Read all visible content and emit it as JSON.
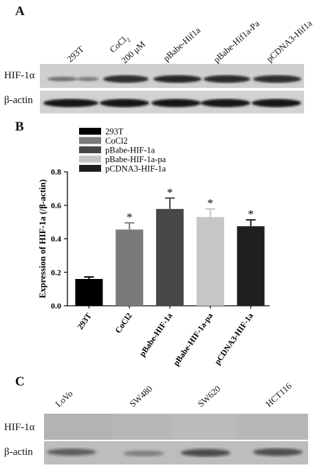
{
  "panel_a": {
    "letter": "A",
    "lanes": [
      {
        "label": "293T"
      },
      {
        "label": "CoCl",
        "sub": "2",
        "label2": "200 μM"
      },
      {
        "label": "pBabe-Hif1a"
      },
      {
        "label": "pBabe-Hif1a-Pa"
      },
      {
        "label": "pCDNA3-Hif1a"
      }
    ],
    "row1_label": "HIF-1α",
    "row2_label": "β-actin"
  },
  "panel_b": {
    "letter": "B"
  },
  "panel_c": {
    "letter": "C",
    "lanes": [
      "LoVo",
      "SW480",
      "SW620",
      "HCT116"
    ],
    "row1_label": "HIF-1α",
    "row2_label": "β-actin"
  },
  "chart_data": {
    "type": "bar",
    "categories": [
      "293T",
      "CoCl2",
      "pBabe-HIF-1a",
      "pBabe-HIF-1a-pa",
      "pCDNA3-HIF-1a"
    ],
    "values": [
      0.16,
      0.455,
      0.578,
      0.53,
      0.475
    ],
    "errors": [
      0.012,
      0.04,
      0.065,
      0.048,
      0.038
    ],
    "significance": [
      "",
      "*",
      "*",
      "*",
      "*"
    ],
    "colors": [
      "#000000",
      "#7a7a7a",
      "#474747",
      "#c6c6c6",
      "#1f1f1f"
    ],
    "legend": [
      "293T",
      "CoCl2",
      "pBabe-HIF-1a",
      "pBabe-HIF-1a-pa",
      "pCDNA3-HIF-1a"
    ],
    "legend_position": "top-left",
    "ylabel": "Expression of HIF-1a (/β-actin)",
    "ylim": [
      0,
      0.8
    ],
    "yticks": [
      "0.0",
      "0.2",
      "0.4",
      "0.6",
      "0.8"
    ],
    "grid": false
  }
}
